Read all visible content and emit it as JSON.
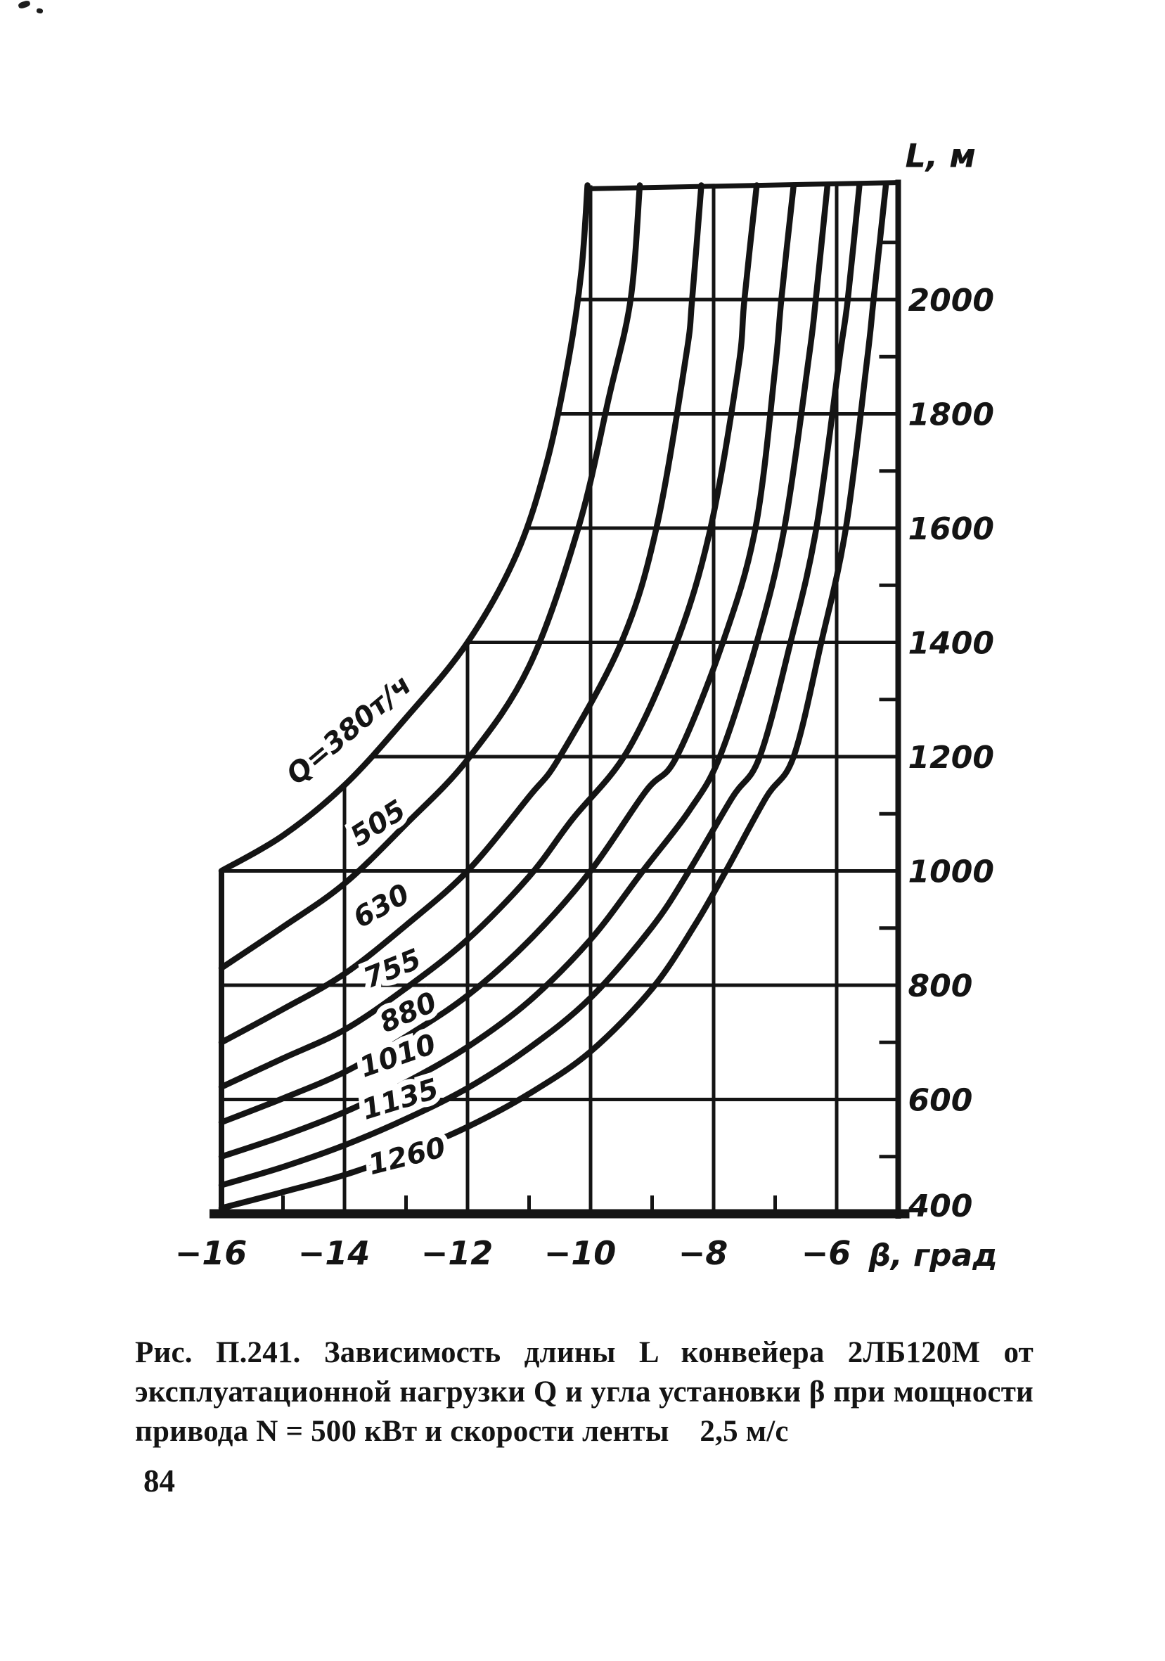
{
  "page": {
    "number": "84",
    "background": "#ffffff",
    "ink": "#141414"
  },
  "figure": {
    "caption_lines": [
      "Рис. П.241. Зависимость длины L конвейера 2ЛБ120М от",
      "эксплуатационной нагрузки Q и угла установки β при мощности",
      "привода N = 500 кВт и скорости ленты    2,5 м/с"
    ]
  },
  "chart_data": {
    "type": "line",
    "title": "",
    "xlabel": "β, град",
    "ylabel": "L, м",
    "grid": true,
    "legend": "none",
    "x_axis": {
      "min": -16,
      "max": -5,
      "major_ticks": [
        -16,
        -14,
        -12,
        -10,
        -8,
        -6
      ],
      "tick_labels": [
        "−16",
        "−14",
        "−12",
        "−10",
        "−8",
        "−6"
      ],
      "minor_ticks": [
        -15,
        -13,
        -11,
        -9,
        -7
      ]
    },
    "y_axis": {
      "min": 400,
      "max": 2200,
      "major_ticks": [
        400,
        600,
        800,
        1000,
        1200,
        1400,
        1600,
        1800,
        2000
      ],
      "tick_labels": [
        "400",
        "600",
        "800",
        "1000",
        "1200",
        "1400",
        "1600",
        "1800",
        "2000"
      ],
      "minor_ticks": [
        500,
        700,
        900,
        1100,
        1300,
        1500,
        1700,
        1900,
        2100
      ],
      "gridlines": [
        600,
        800,
        1000,
        1200,
        1400,
        1600,
        1800,
        2000
      ]
    },
    "series": [
      {
        "name": "Q = 380 т/ч",
        "label": "Q=380т/ч",
        "label_pos": [
          505,
          1048,
          -40
        ],
        "points": [
          [
            -16,
            1000
          ],
          [
            -15,
            1062
          ],
          [
            -14,
            1150
          ],
          [
            -13,
            1268
          ],
          [
            -12,
            1400
          ],
          [
            -11.2,
            1555
          ],
          [
            -10.7,
            1720
          ],
          [
            -10.35,
            1900
          ],
          [
            -10.15,
            2050
          ],
          [
            -10.05,
            2200
          ]
        ]
      },
      {
        "name": "505",
        "label": "505",
        "label_pos": [
          545,
          1182,
          -33
        ],
        "points": [
          [
            -16,
            830
          ],
          [
            -15,
            902
          ],
          [
            -14,
            978
          ],
          [
            -13,
            1082
          ],
          [
            -12,
            1195
          ],
          [
            -11,
            1358
          ],
          [
            -10.2,
            1600
          ],
          [
            -9.7,
            1830
          ],
          [
            -9.35,
            2000
          ],
          [
            -9.2,
            2200
          ]
        ]
      },
      {
        "name": "630",
        "label": "630",
        "label_pos": [
          549,
          1300,
          -29
        ],
        "points": [
          [
            -16,
            700
          ],
          [
            -15,
            758
          ],
          [
            -14,
            820
          ],
          [
            -13,
            905
          ],
          [
            -12,
            1000
          ],
          [
            -11,
            1130
          ],
          [
            -10.5,
            1200
          ],
          [
            -9.5,
            1400
          ],
          [
            -8.93,
            1600
          ],
          [
            -8.45,
            1900
          ],
          [
            -8.35,
            2000
          ],
          [
            -8.2,
            2200
          ]
        ]
      },
      {
        "name": "755",
        "label": "755",
        "label_pos": [
          563,
          1390,
          -22
        ],
        "points": [
          [
            -16,
            622
          ],
          [
            -15,
            672
          ],
          [
            -14,
            722
          ],
          [
            -13,
            795
          ],
          [
            -12,
            880
          ],
          [
            -11,
            990
          ],
          [
            -10.3,
            1090
          ],
          [
            -9.4,
            1210
          ],
          [
            -8.6,
            1400
          ],
          [
            -8.05,
            1600
          ],
          [
            -7.6,
            1880
          ],
          [
            -7.5,
            2000
          ],
          [
            -7.3,
            2200
          ]
        ]
      },
      {
        "name": "880",
        "label": "880",
        "label_pos": [
          586,
          1452,
          -24
        ],
        "points": [
          [
            -16,
            560
          ],
          [
            -15,
            602
          ],
          [
            -14,
            648
          ],
          [
            -13,
            710
          ],
          [
            -12,
            782
          ],
          [
            -11,
            878
          ],
          [
            -10,
            1000
          ],
          [
            -9.1,
            1140
          ],
          [
            -8.6,
            1200
          ],
          [
            -7.85,
            1400
          ],
          [
            -7.32,
            1600
          ],
          [
            -7.0,
            1880
          ],
          [
            -6.9,
            2000
          ],
          [
            -6.7,
            2200
          ]
        ]
      },
      {
        "name": "1010",
        "label": "1010",
        "label_pos": [
          570,
          1514,
          -19
        ],
        "points": [
          [
            -16,
            500
          ],
          [
            -15,
            536
          ],
          [
            -14,
            578
          ],
          [
            -13,
            630
          ],
          [
            -12,
            692
          ],
          [
            -11,
            772
          ],
          [
            -10,
            880
          ],
          [
            -9.15,
            1000
          ],
          [
            -8.4,
            1105
          ],
          [
            -7.9,
            1200
          ],
          [
            -7.3,
            1400
          ],
          [
            -6.85,
            1600
          ],
          [
            -6.45,
            1900
          ],
          [
            -6.34,
            2000
          ],
          [
            -6.15,
            2200
          ]
        ]
      },
      {
        "name": "1135",
        "label": "1135",
        "label_pos": [
          573,
          1576,
          -17
        ],
        "points": [
          [
            -16,
            450
          ],
          [
            -15,
            482
          ],
          [
            -14,
            520
          ],
          [
            -13,
            566
          ],
          [
            -12,
            620
          ],
          [
            -11,
            690
          ],
          [
            -10,
            778
          ],
          [
            -9,
            902
          ],
          [
            -8.4,
            1000
          ],
          [
            -7.7,
            1128
          ],
          [
            -7.25,
            1200
          ],
          [
            -6.75,
            1400
          ],
          [
            -6.33,
            1600
          ],
          [
            -5.95,
            1900
          ],
          [
            -5.82,
            2000
          ],
          [
            -5.63,
            2200
          ]
        ]
      },
      {
        "name": "1260",
        "label": "1260",
        "label_pos": [
          582,
          1657,
          -14
        ],
        "points": [
          [
            -16,
            410
          ],
          [
            -15,
            438
          ],
          [
            -14,
            468
          ],
          [
            -13,
            506
          ],
          [
            -12,
            552
          ],
          [
            -11,
            610
          ],
          [
            -10,
            684
          ],
          [
            -9,
            794
          ],
          [
            -8.3,
            906
          ],
          [
            -7.8,
            1000
          ],
          [
            -7.15,
            1128
          ],
          [
            -6.7,
            1200
          ],
          [
            -6.25,
            1400
          ],
          [
            -5.85,
            1600
          ],
          [
            -5.5,
            1900
          ],
          [
            -5.4,
            2000
          ],
          [
            -5.2,
            2200
          ]
        ]
      }
    ]
  }
}
